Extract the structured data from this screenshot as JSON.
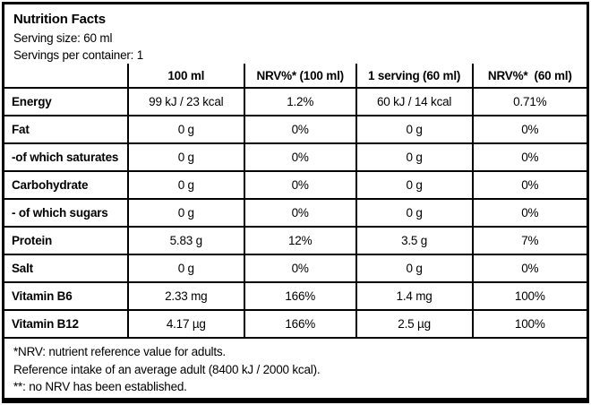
{
  "header": {
    "title": "Nutrition Facts",
    "serving_size": "Serving size: 60 ml",
    "servings_per_container": "Servings per container: 1"
  },
  "table": {
    "columns": [
      "",
      "100 ml",
      "NRV%* (100 ml)",
      "1 serving (60 ml)",
      "NRV%*  (60 ml)"
    ],
    "rows": [
      {
        "label": "Energy",
        "per_100ml": "99 kJ / 23 kcal",
        "nrv_100ml": "1.2%",
        "per_serving": "60 kJ / 14 kcal",
        "nrv_serving": "0.71%"
      },
      {
        "label": "Fat",
        "per_100ml": "0 g",
        "nrv_100ml": "0%",
        "per_serving": "0 g",
        "nrv_serving": "0%"
      },
      {
        "label": "-of which saturates",
        "per_100ml": "0 g",
        "nrv_100ml": "0%",
        "per_serving": "0 g",
        "nrv_serving": "0%"
      },
      {
        "label": "Carbohydrate",
        "per_100ml": "0 g",
        "nrv_100ml": "0%",
        "per_serving": "0 g",
        "nrv_serving": "0%"
      },
      {
        "label": "- of which sugars",
        "per_100ml": "0 g",
        "nrv_100ml": "0%",
        "per_serving": "0 g",
        "nrv_serving": "0%"
      },
      {
        "label": "Protein",
        "per_100ml": "5.83 g",
        "nrv_100ml": "12%",
        "per_serving": "3.5 g",
        "nrv_serving": "7%"
      },
      {
        "label": "Salt",
        "per_100ml": "0 g",
        "nrv_100ml": "0%",
        "per_serving": "0 g",
        "nrv_serving": "0%"
      },
      {
        "label": "Vitamin B6",
        "per_100ml": "2.33 mg",
        "nrv_100ml": "166%",
        "per_serving": "1.4 mg",
        "nrv_serving": "100%"
      },
      {
        "label": "Vitamin B12",
        "per_100ml": "4.17 µg",
        "nrv_100ml": "166%",
        "per_serving": "2.5 µg",
        "nrv_serving": "100%"
      }
    ]
  },
  "footnotes": [
    "*NRV: nutrient reference value for adults.",
    "Reference intake of an average adult (8400 kJ / 2000 kcal).",
    "**: no NRV has been established."
  ],
  "colors": {
    "text": "#000000",
    "background": "#ffffff",
    "border": "#000000"
  }
}
